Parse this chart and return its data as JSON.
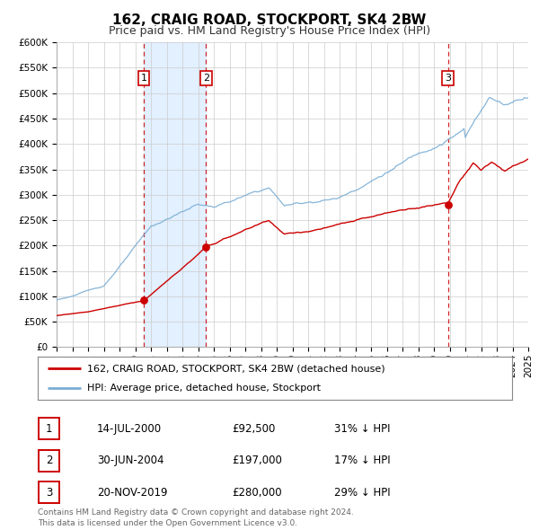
{
  "title": "162, CRAIG ROAD, STOCKPORT, SK4 2BW",
  "subtitle": "Price paid vs. HM Land Registry's House Price Index (HPI)",
  "xlim": [
    1995,
    2025
  ],
  "ylim": [
    0,
    600000
  ],
  "yticks": [
    0,
    50000,
    100000,
    150000,
    200000,
    250000,
    300000,
    350000,
    400000,
    450000,
    500000,
    550000,
    600000
  ],
  "ytick_labels": [
    "£0",
    "£50K",
    "£100K",
    "£150K",
    "£200K",
    "£250K",
    "£300K",
    "£350K",
    "£400K",
    "£450K",
    "£500K",
    "£550K",
    "£600K"
  ],
  "sale_dates": [
    2000.54,
    2004.5,
    2019.9
  ],
  "sale_prices": [
    92500,
    197000,
    280000
  ],
  "sale_labels": [
    "1",
    "2",
    "3"
  ],
  "vline_dates": [
    2000.54,
    2004.5,
    2019.9
  ],
  "shade_regions": [
    [
      2000.54,
      2004.5
    ]
  ],
  "legend_labels": [
    "162, CRAIG ROAD, STOCKPORT, SK4 2BW (detached house)",
    "HPI: Average price, detached house, Stockport"
  ],
  "table_rows": [
    [
      "1",
      "14-JUL-2000",
      "£92,500",
      "31% ↓ HPI"
    ],
    [
      "2",
      "30-JUN-2004",
      "£197,000",
      "17% ↓ HPI"
    ],
    [
      "3",
      "20-NOV-2019",
      "£280,000",
      "29% ↓ HPI"
    ]
  ],
  "footer": "Contains HM Land Registry data © Crown copyright and database right 2024.\nThis data is licensed under the Open Government Licence v3.0.",
  "line_color_sale": "#cc0000",
  "line_color_hpi": "#7aadd4",
  "dot_color": "#cc0000",
  "vline_color": "#cc0000",
  "shade_color": "#ddeeff",
  "grid_color": "#cccccc",
  "bg_color": "#ffffff",
  "title_fontsize": 11,
  "subtitle_fontsize": 9,
  "tick_fontsize": 7.5,
  "legend_fontsize": 8,
  "table_fontsize": 8.5,
  "footer_fontsize": 6.5
}
